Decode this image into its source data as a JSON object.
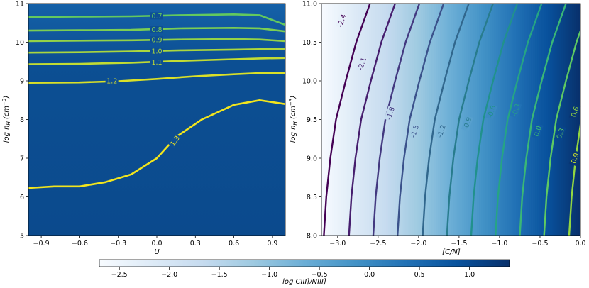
{
  "chart_data": [
    {
      "type": "contour",
      "xlabel": "U",
      "ylabel": "log n_H (cm^-3)",
      "xlim": [
        -1.0,
        1.0
      ],
      "ylim": [
        5,
        11
      ],
      "xticks": [
        "−0.9",
        "−0.6",
        "−0.3",
        "0.0",
        "0.3",
        "0.6",
        "0.9"
      ],
      "xtick_values": [
        -0.9,
        -0.6,
        -0.3,
        0.0,
        0.3,
        0.6,
        0.9
      ],
      "yticks": [
        "5",
        "6",
        "7",
        "8",
        "9",
        "10",
        "11"
      ],
      "ytick_values": [
        5,
        6,
        7,
        8,
        9,
        10,
        11
      ],
      "background_value": 1.05,
      "contour_color_low": "#f2e51d",
      "contour_color_high": "#63c95e",
      "contours": [
        {
          "label": "0.7",
          "level": 0.7,
          "x": [
            -1.0,
            -0.6,
            -0.2,
            0.2,
            0.6,
            0.8,
            1.0
          ],
          "y": [
            10.65,
            10.66,
            10.67,
            10.7,
            10.72,
            10.7,
            10.45
          ],
          "label_at": [
            0.0,
            10.68
          ]
        },
        {
          "label": "0.8",
          "level": 0.8,
          "x": [
            -1.0,
            -0.6,
            -0.2,
            0.2,
            0.6,
            0.8,
            1.0
          ],
          "y": [
            10.3,
            10.31,
            10.32,
            10.36,
            10.37,
            10.36,
            10.28
          ],
          "label_at": [
            0.0,
            10.33
          ]
        },
        {
          "label": "0.9",
          "level": 0.9,
          "x": [
            -1.0,
            -0.6,
            -0.2,
            0.2,
            0.6,
            0.8,
            1.0
          ],
          "y": [
            10.03,
            10.04,
            10.05,
            10.07,
            10.08,
            10.07,
            10.03
          ],
          "label_at": [
            0.0,
            10.06
          ]
        },
        {
          "label": "1.0",
          "level": 1.0,
          "x": [
            -1.0,
            -0.6,
            -0.2,
            0.2,
            0.6,
            0.8,
            1.0
          ],
          "y": [
            9.73,
            9.74,
            9.76,
            9.79,
            9.81,
            9.82,
            9.82
          ],
          "label_at": [
            0.0,
            9.77
          ]
        },
        {
          "label": "1.1",
          "level": 1.1,
          "x": [
            -1.0,
            -0.6,
            -0.2,
            0.2,
            0.6,
            0.8,
            1.0
          ],
          "y": [
            9.43,
            9.44,
            9.47,
            9.52,
            9.56,
            9.58,
            9.59
          ],
          "label_at": [
            0.0,
            9.48
          ]
        },
        {
          "label": "1.2",
          "level": 1.2,
          "x": [
            -1.0,
            -0.6,
            -0.3,
            0.0,
            0.3,
            0.6,
            0.8,
            1.0
          ],
          "y": [
            8.95,
            8.96,
            8.99,
            9.05,
            9.12,
            9.17,
            9.2,
            9.2
          ],
          "label_at": [
            -0.35,
            9.0
          ]
        },
        {
          "label": "1.3",
          "level": 1.3,
          "x": [
            -1.0,
            -0.8,
            -0.6,
            -0.4,
            -0.2,
            0.0,
            0.15,
            0.35,
            0.6,
            0.8,
            1.0
          ],
          "y": [
            6.23,
            6.27,
            6.27,
            6.38,
            6.58,
            7.0,
            7.55,
            8.0,
            8.38,
            8.5,
            8.4
          ],
          "label_at": [
            0.14,
            7.45
          ]
        }
      ]
    },
    {
      "type": "contour",
      "xlabel": "[C/N]",
      "ylabel": "log n_H (cm^-3)",
      "xlim": [
        -3.2,
        0.0
      ],
      "ylim": [
        8.0,
        11.0
      ],
      "xticks": [
        "−3.0",
        "−2.5",
        "−2.0",
        "−1.5",
        "−1.0",
        "−0.5",
        "0.0"
      ],
      "xtick_values": [
        -3.0,
        -2.5,
        -2.0,
        -1.5,
        -1.0,
        -0.5,
        0.0
      ],
      "yticks": [
        "8.0",
        "8.5",
        "9.0",
        "9.5",
        "10.0",
        "10.5",
        "11.0"
      ],
      "ytick_values": [
        8.0,
        8.5,
        9.0,
        9.5,
        10.0,
        10.5,
        11.0
      ],
      "background": "linear increase in log CIII]/NIII] from −2.7 at [C/N]=−3.2 to 1.4 at [C/N]=0",
      "contour_color_low": "#440154",
      "contour_color_high": "#dde318",
      "contours": [
        {
          "label": "-2.4",
          "level": -2.4,
          "shift": -0.02,
          "label_at": [
            -2.95,
            10.78
          ]
        },
        {
          "label": "-2.1",
          "level": -2.1,
          "shift": 0.29,
          "label_at": [
            -2.7,
            10.22
          ]
        },
        {
          "label": "-1.8",
          "level": -1.8,
          "shift": 0.59,
          "label_at": [
            -2.35,
            9.58
          ]
        },
        {
          "label": "-1.5",
          "level": -1.5,
          "shift": 0.89,
          "label_at": [
            -2.05,
            9.35
          ]
        },
        {
          "label": "-1.2",
          "level": -1.2,
          "shift": 1.2,
          "label_at": [
            -1.72,
            9.35
          ]
        },
        {
          "label": "-0.9",
          "level": -0.9,
          "shift": 1.5,
          "label_at": [
            -1.4,
            9.45
          ]
        },
        {
          "label": "-0.6",
          "level": -0.6,
          "shift": 1.8,
          "label_at": [
            -1.1,
            9.6
          ]
        },
        {
          "label": "-0.3",
          "level": -0.3,
          "shift": 2.1,
          "label_at": [
            -0.8,
            9.62
          ]
        },
        {
          "label": "0.0",
          "level": 0.0,
          "shift": 2.4,
          "label_at": [
            -0.53,
            9.35
          ]
        },
        {
          "label": "0.3",
          "level": 0.3,
          "shift": 2.7,
          "label_at": [
            -0.25,
            9.32
          ]
        },
        {
          "label": "0.6",
          "level": 0.6,
          "shift": 3.01,
          "label_at": [
            0.06,
            9.6
          ]
        },
        {
          "label": "0.9",
          "level": 0.9,
          "shift": 3.31,
          "label_at": [
            0.2,
            9.0
          ]
        }
      ],
      "base_curve": {
        "y": [
          8.0,
          8.5,
          9.0,
          9.5,
          10.0,
          10.5,
          11.0
        ],
        "x": [
          -3.15,
          -3.12,
          -3.07,
          -3.0,
          -2.88,
          -2.75,
          -2.58
        ]
      },
      "rightmost_curve_y": [
        8.0,
        8.5,
        9.0,
        9.5,
        9.9,
        10.2,
        10.4,
        10.55
      ],
      "rightmost_curve_x": [
        -0.4,
        -0.36,
        -0.3,
        -0.2,
        -0.08,
        0.0,
        0.0,
        0.0
      ]
    }
  ],
  "colorbar": {
    "label": "log CIII]/NIII]",
    "range": [
      -2.7,
      1.4
    ],
    "ticks": [
      "−2.5",
      "−2.0",
      "−1.5",
      "−1.0",
      "−0.5",
      "0.0",
      "0.5",
      "1.0"
    ],
    "tick_values": [
      -2.5,
      -2.0,
      -1.5,
      -1.0,
      -0.5,
      0.0,
      0.5,
      1.0
    ],
    "cmap_stops": [
      "#f7fbff",
      "#deebf7",
      "#c6dbef",
      "#9ecae1",
      "#6baed6",
      "#4292c6",
      "#2171b5",
      "#08519c",
      "#08306b"
    ]
  }
}
